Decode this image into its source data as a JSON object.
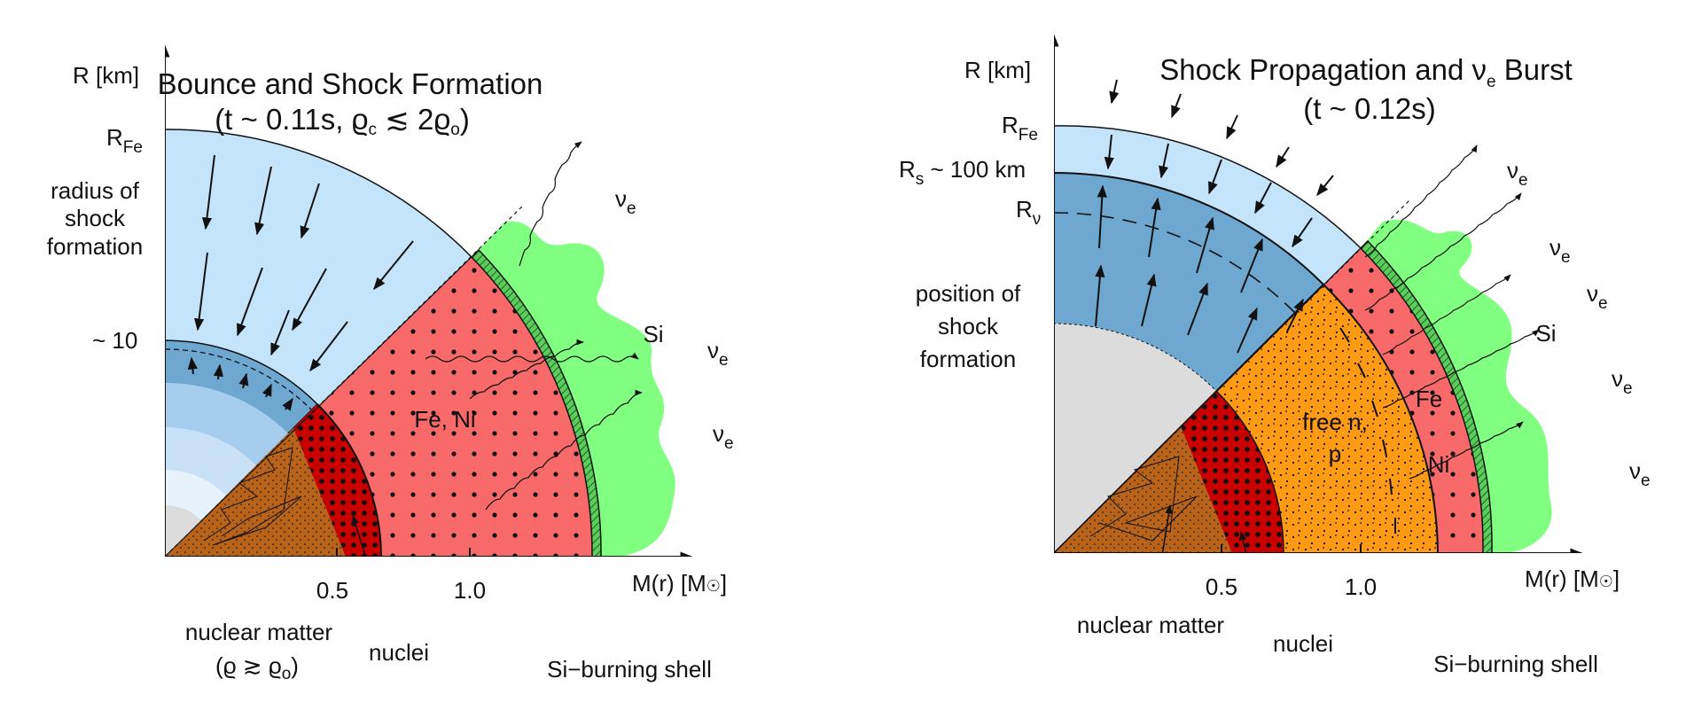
{
  "left": {
    "title": "Bounce and Shock Formation",
    "subtitle_time": "(t ~ 0.11s, ",
    "subtitle_rho": "ϱ",
    "subtitle_rho_sub": "c",
    "subtitle_le": " ≲ 2",
    "subtitle_rho2": "ϱ",
    "subtitle_rho2_sub": "o",
    "subtitle_close": ")",
    "y_axis": "R [km]",
    "x_axis": "M(r) [M",
    "x_axis_close": "]",
    "r_fe": "R",
    "r_fe_sub": "Fe",
    "radius_label": [
      "radius of",
      "shock",
      "formation"
    ],
    "tick_10": "~ 10",
    "tick_05": "0.5",
    "tick_10b": "1.0",
    "fe_ni": "Fe, Ni",
    "si": "Si",
    "nu": "ν",
    "nu_sub": "e",
    "nuclear_matter": "nuclear matter",
    "nuclear_cond": "(ϱ ≳ ϱ",
    "nuclear_cond_sub": "o",
    "nuclear_cond_close": ")",
    "nuclei": "nuclei",
    "si_shell": "Si−burning shell"
  },
  "right": {
    "title": "Shock Propagation and ",
    "title_nu": "ν",
    "title_nu_sub": "e",
    "title_tail": " Burst",
    "subtitle": "(t ~ 0.12s)",
    "y_axis": "R [km]",
    "x_axis": "M(r) [M",
    "x_axis_close": "]",
    "r_fe": "R",
    "r_fe_sub": "Fe",
    "r_s": "R",
    "r_s_sub": "s",
    "r_s_tail": " ~ 100 km",
    "r_nu": "R",
    "r_nu_sub": "ν",
    "position_label": [
      "position of",
      "shock",
      "formation"
    ],
    "tick_05": "0.5",
    "tick_10": "1.0",
    "free_np": [
      "free n,",
      "p"
    ],
    "fe": "Fe",
    "ni": "Ni",
    "si": "Si",
    "nu": "ν",
    "nu_sub": "e",
    "nuclear_matter": "nuclear matter",
    "nuclei": "nuclei",
    "si_shell": "Si−burning shell"
  },
  "colors": {
    "light_blue": "#c4e4fb",
    "mid_blue": "#6ea8d0",
    "salmon": "#f86a6a",
    "dark_red": "#c80000",
    "brown": "#b8621a",
    "green": "#80ff80",
    "orange": "#ff9a14",
    "grey": "#dcdcdc"
  }
}
